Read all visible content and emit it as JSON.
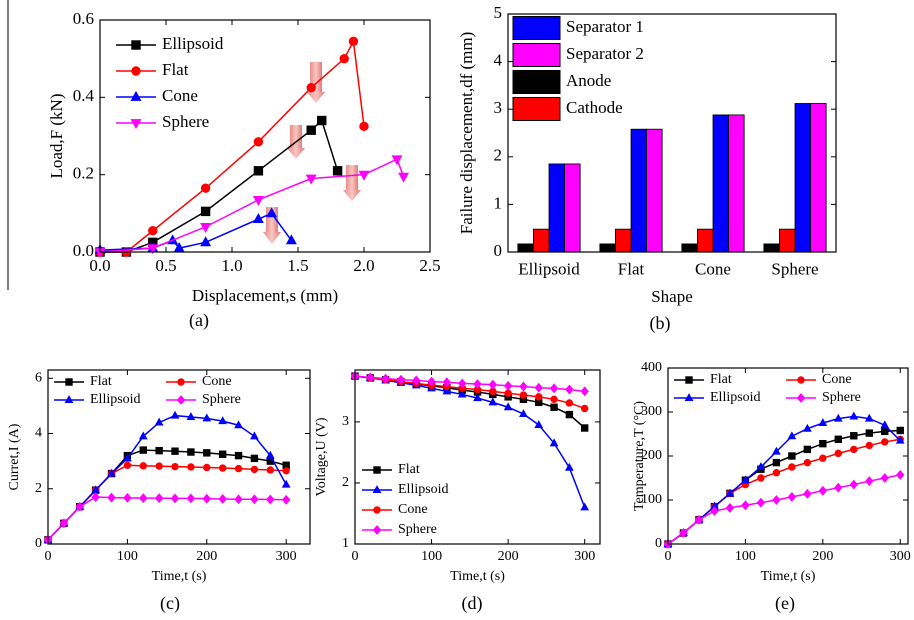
{
  "chart_data": [
    {
      "type": "line",
      "panel_label": "(a)",
      "x_label": "Displacement,s (mm)",
      "y_label": "Load,F (kN)",
      "xlim": [
        0,
        2.5
      ],
      "xticks": [
        {
          "value": 0,
          "label": "0.0"
        },
        0.5,
        {
          "value": 1,
          "label": "1.0"
        },
        1.5,
        {
          "value": 2,
          "label": "2.0"
        },
        2.5
      ],
      "ylim": [
        0,
        0.6
      ],
      "yticks": [
        {
          "value": 0,
          "label": "0.0"
        },
        0.2,
        0.4,
        0.6
      ],
      "legend": "upper left",
      "legend_columns": 1,
      "series": [
        {
          "name": "Ellipsoid",
          "color": "#000000",
          "marker": "square",
          "x": [
            0,
            0.2,
            0.4,
            0.8,
            1.2,
            1.6,
            1.68,
            1.8
          ],
          "values": [
            0,
            0,
            0.025,
            0.105,
            0.21,
            0.315,
            0.34,
            0.21
          ]
        },
        {
          "name": "Flat",
          "color": "#ff0000",
          "marker": "circle",
          "x": [
            0,
            0.2,
            0.4,
            0.8,
            1.2,
            1.6,
            1.85,
            1.92,
            2.0
          ],
          "values": [
            0,
            0,
            0.055,
            0.165,
            0.285,
            0.425,
            0.5,
            0.545,
            0.325
          ]
        },
        {
          "name": "Cone",
          "color": "#0000ff",
          "marker": "triangle",
          "x": [
            0,
            0.4,
            0.55,
            0.6,
            0.8,
            1.2,
            1.3,
            1.45
          ],
          "values": [
            0.005,
            0.01,
            0.03,
            0.01,
            0.025,
            0.085,
            0.1,
            0.03
          ]
        },
        {
          "name": "Sphere",
          "color": "#ff00ff",
          "marker": "triangle-down",
          "x": [
            0,
            0.4,
            0.8,
            1.2,
            1.6,
            2.0,
            2.25,
            2.3
          ],
          "values": [
            0,
            0.01,
            0.065,
            0.135,
            0.19,
            0.2,
            0.24,
            0.195
          ]
        }
      ]
    },
    {
      "type": "bar",
      "panel_label": "(b)",
      "x_label": "Shape",
      "y_label": "Failure displacement,df (mm)",
      "categories": [
        "Ellipsoid",
        "Flat",
        "Cone",
        "Sphere"
      ],
      "ylim": [
        0,
        5
      ],
      "yticks": [
        0,
        1,
        2,
        3,
        4,
        5
      ],
      "legend": "upper left",
      "legend_columns": 1,
      "series": [
        {
          "name": "Separator 1",
          "color": "#0000ff",
          "values": [
            1.85,
            2.58,
            2.88,
            3.12
          ]
        },
        {
          "name": "Separator 2",
          "color": "#ff00ff",
          "values": [
            1.85,
            2.58,
            2.88,
            3.12
          ]
        },
        {
          "name": "Anode",
          "color": "#000000",
          "values": [
            0.17,
            0.17,
            0.17,
            0.17
          ]
        },
        {
          "name": "Cathode",
          "color": "#ff0000",
          "values": [
            0.48,
            0.48,
            0.48,
            0.48
          ]
        }
      ]
    },
    {
      "type": "line",
      "panel_label": "(c)",
      "x_label": "Time,t (s)",
      "y_label": "Curret,I (A)",
      "xlim": [
        0,
        330
      ],
      "xticks": [
        0,
        100,
        200,
        300
      ],
      "ylim": [
        0,
        6.3
      ],
      "yticks": [
        0,
        2,
        4,
        6
      ],
      "legend": "upper",
      "legend_columns": 2,
      "x": [
        0,
        20,
        40,
        60,
        80,
        100,
        120,
        140,
        160,
        180,
        200,
        220,
        240,
        260,
        280,
        300
      ],
      "series": [
        {
          "name": "Flat",
          "color": "#000000",
          "marker": "square",
          "values": [
            0.15,
            0.75,
            1.35,
            1.95,
            2.55,
            3.2,
            3.4,
            3.38,
            3.36,
            3.33,
            3.3,
            3.25,
            3.2,
            3.1,
            3.0,
            2.85
          ]
        },
        {
          "name": "Cone",
          "color": "#ff0000",
          "marker": "circle",
          "values": [
            0.15,
            0.75,
            1.35,
            1.95,
            2.55,
            2.85,
            2.83,
            2.82,
            2.8,
            2.79,
            2.77,
            2.75,
            2.73,
            2.7,
            2.68,
            2.65
          ]
        },
        {
          "name": "Ellipsoid",
          "color": "#0000ff",
          "marker": "triangle",
          "values": [
            0.15,
            0.75,
            1.35,
            1.95,
            2.55,
            3.1,
            3.9,
            4.4,
            4.65,
            4.6,
            4.55,
            4.45,
            4.3,
            3.9,
            3.2,
            2.15
          ]
        },
        {
          "name": "Sphere",
          "color": "#ff00ff",
          "marker": "diamond",
          "values": [
            0.15,
            0.75,
            1.35,
            1.7,
            1.68,
            1.67,
            1.66,
            1.66,
            1.65,
            1.65,
            1.64,
            1.63,
            1.62,
            1.62,
            1.61,
            1.6
          ]
        }
      ]
    },
    {
      "type": "line",
      "panel_label": "(d)",
      "x_label": "Time,t (s)",
      "y_label": "Voltage,U (V)",
      "xlim": [
        0,
        320
      ],
      "xticks": [
        0,
        100,
        200,
        300
      ],
      "ylim": [
        1,
        3.85
      ],
      "yticks": [
        1,
        2,
        3
      ],
      "legend": "lower left",
      "legend_columns": 1,
      "x": [
        0,
        20,
        40,
        60,
        80,
        100,
        120,
        140,
        160,
        180,
        200,
        220,
        240,
        260,
        280,
        300
      ],
      "series": [
        {
          "name": "Flat",
          "color": "#000000",
          "marker": "square",
          "values": [
            3.75,
            3.72,
            3.69,
            3.66,
            3.62,
            3.59,
            3.56,
            3.52,
            3.49,
            3.45,
            3.41,
            3.37,
            3.32,
            3.24,
            3.12,
            2.9
          ]
        },
        {
          "name": "Ellipsoid",
          "color": "#0000ff",
          "marker": "triangle",
          "values": [
            3.75,
            3.72,
            3.68,
            3.64,
            3.6,
            3.55,
            3.5,
            3.45,
            3.39,
            3.32,
            3.24,
            3.13,
            2.95,
            2.65,
            2.25,
            1.6
          ]
        },
        {
          "name": "Cone",
          "color": "#ff0000",
          "marker": "circle",
          "values": [
            3.75,
            3.72,
            3.69,
            3.66,
            3.63,
            3.6,
            3.58,
            3.55,
            3.53,
            3.5,
            3.47,
            3.44,
            3.41,
            3.37,
            3.31,
            3.22
          ]
        },
        {
          "name": "Sphere",
          "color": "#ff00ff",
          "marker": "diamond",
          "values": [
            3.75,
            3.73,
            3.71,
            3.69,
            3.68,
            3.66,
            3.65,
            3.63,
            3.62,
            3.61,
            3.59,
            3.58,
            3.56,
            3.55,
            3.53,
            3.5
          ]
        }
      ]
    },
    {
      "type": "line",
      "panel_label": "(e)",
      "x_label": "Time,t (s)",
      "y_label": "Temperature,T (°C)",
      "xlim": [
        0,
        310
      ],
      "xticks": [
        0,
        100,
        200,
        300
      ],
      "ylim": [
        0,
        400
      ],
      "yticks": [
        0,
        100,
        200,
        300,
        400
      ],
      "legend": "upper",
      "legend_columns": 2,
      "x": [
        0,
        20,
        40,
        60,
        80,
        100,
        120,
        140,
        160,
        180,
        200,
        220,
        240,
        260,
        280,
        300
      ],
      "series": [
        {
          "name": "Flat",
          "color": "#000000",
          "marker": "square",
          "values": [
            0,
            25,
            55,
            85,
            115,
            145,
            170,
            185,
            200,
            215,
            228,
            238,
            246,
            252,
            256,
            258
          ]
        },
        {
          "name": "Cone",
          "color": "#ff0000",
          "marker": "circle",
          "values": [
            0,
            25,
            55,
            85,
            115,
            135,
            150,
            162,
            175,
            185,
            195,
            206,
            215,
            224,
            232,
            238
          ]
        },
        {
          "name": "Ellipsoid",
          "color": "#0000ff",
          "marker": "triangle",
          "values": [
            0,
            25,
            55,
            85,
            115,
            145,
            175,
            210,
            245,
            262,
            275,
            285,
            290,
            285,
            270,
            235
          ]
        },
        {
          "name": "Sphere",
          "color": "#ff00ff",
          "marker": "diamond",
          "values": [
            0,
            25,
            55,
            75,
            82,
            88,
            94,
            100,
            107,
            114,
            121,
            128,
            135,
            143,
            150,
            157
          ]
        }
      ]
    }
  ]
}
